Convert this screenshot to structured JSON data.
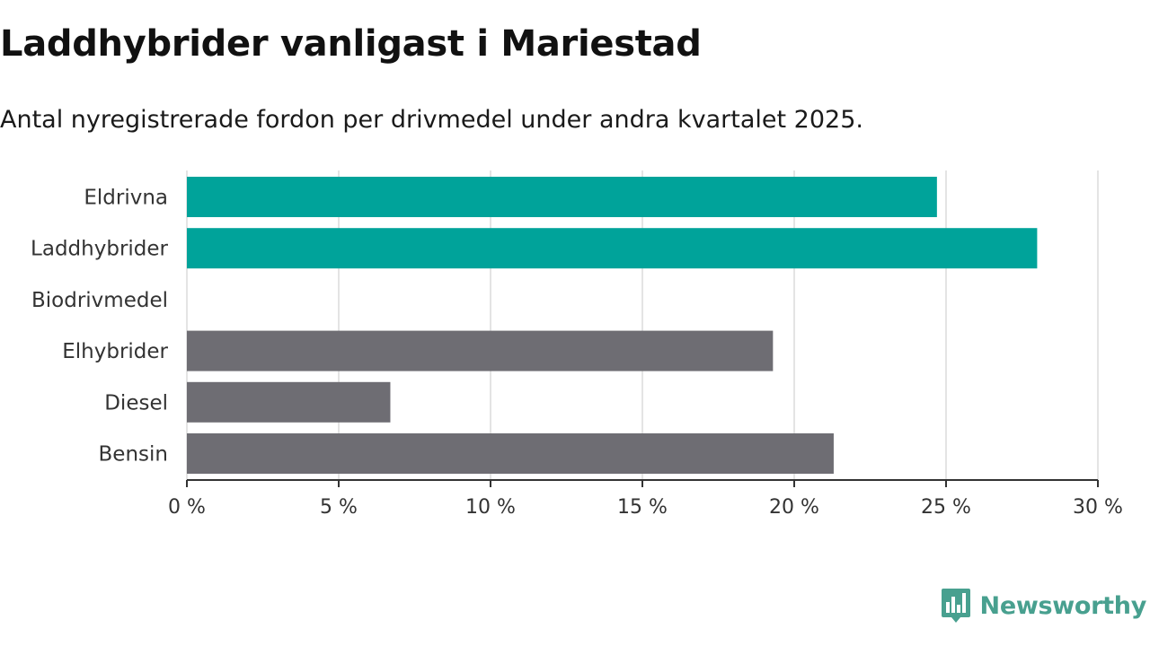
{
  "title": "Laddhybrider vanligast i Mariestad",
  "subtitle": "Antal nyregistrerade fordon per drivmedel under andra kvartalet 2025.",
  "brand": {
    "name": "Newsworthy",
    "logo_icon": "bar-chart-badge-icon",
    "color": "#48a08f"
  },
  "chart_data": {
    "type": "bar",
    "orientation": "horizontal",
    "title": "Laddhybrider vanligast i Mariestad",
    "subtitle": "Antal nyregistrerade fordon per drivmedel under andra kvartalet 2025.",
    "categories": [
      "Eldrivna",
      "Laddhybrider",
      "Biodrivmedel",
      "Elhybrider",
      "Diesel",
      "Bensin"
    ],
    "values": [
      24.7,
      28.0,
      0,
      19.3,
      6.7,
      21.3
    ],
    "unit": "%",
    "xlim": [
      0,
      30
    ],
    "xticks": [
      0,
      5,
      10,
      15,
      20,
      25,
      30
    ],
    "xtick_labels": [
      "0 %",
      "5 %",
      "10 %",
      "15 %",
      "20 %",
      "25 %",
      "30 %"
    ],
    "colors": {
      "highlight": "#00a39a",
      "default": "#6e6d73"
    },
    "highlighted_categories": [
      "Eldrivna",
      "Laddhybrider"
    ],
    "grid": "vertical",
    "xlabel": "",
    "ylabel": ""
  }
}
